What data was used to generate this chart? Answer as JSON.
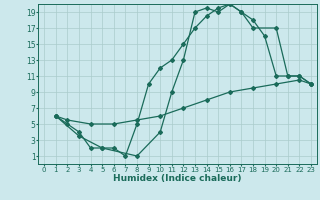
{
  "xlabel": "Humidex (Indice chaleur)",
  "bg_color": "#cce8ec",
  "grid_color": "#aacccc",
  "line_color": "#1a6b5a",
  "xlim": [
    -0.5,
    23.5
  ],
  "ylim": [
    0,
    20
  ],
  "xticks": [
    0,
    1,
    2,
    3,
    4,
    5,
    6,
    7,
    8,
    9,
    10,
    11,
    12,
    13,
    14,
    15,
    16,
    17,
    18,
    19,
    20,
    21,
    22,
    23
  ],
  "yticks": [
    1,
    3,
    5,
    7,
    9,
    11,
    13,
    15,
    17,
    19
  ],
  "line1_x": [
    1,
    2,
    3,
    4,
    5,
    6,
    7,
    8,
    9,
    10,
    11,
    12,
    13,
    14,
    15,
    16,
    17,
    18,
    19,
    20,
    21,
    22,
    23
  ],
  "line1_y": [
    6,
    5,
    4,
    2,
    2,
    2,
    1,
    5,
    10,
    12,
    13,
    15,
    17,
    18.5,
    19.5,
    20,
    19,
    18,
    16,
    11,
    11,
    11,
    10
  ],
  "line2_x": [
    1,
    3,
    5,
    8,
    10,
    11,
    12,
    13,
    14,
    15,
    16,
    17,
    18,
    20,
    21,
    22,
    23
  ],
  "line2_y": [
    6,
    3.5,
    2,
    1,
    4,
    9,
    13,
    19,
    19.5,
    19,
    20,
    19,
    17,
    17,
    11,
    11,
    10
  ],
  "line3_x": [
    1,
    2,
    4,
    6,
    8,
    10,
    12,
    14,
    16,
    18,
    20,
    22,
    23
  ],
  "line3_y": [
    6,
    5.5,
    5,
    5,
    5.5,
    6,
    7,
    8,
    9,
    9.5,
    10,
    10.5,
    10
  ],
  "marker": "D",
  "markersize": 2.0,
  "linewidth": 0.9
}
